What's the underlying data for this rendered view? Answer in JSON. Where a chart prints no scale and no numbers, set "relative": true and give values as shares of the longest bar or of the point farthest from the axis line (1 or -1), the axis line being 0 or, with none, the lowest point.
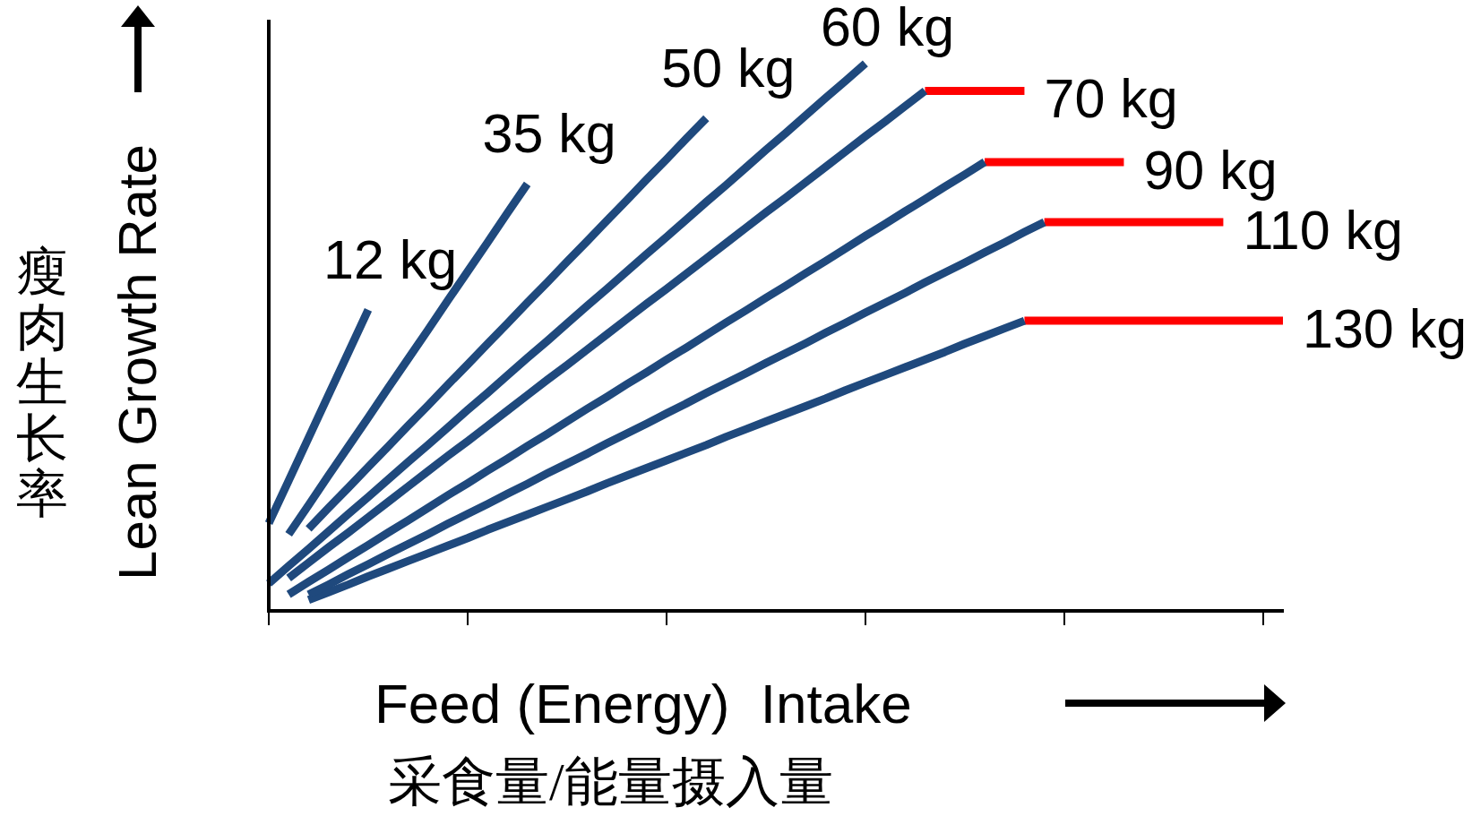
{
  "chart_data": {
    "type": "line",
    "relative": true,
    "xlabel": "Feed (Energy)  Intake\n采食量/能量摄入量",
    "ylabel": "Lean Growth Rate\n瘦肉生长率",
    "categories": [
      null,
      null,
      null,
      null,
      null,
      null,
      null,
      null,
      null,
      null,
      null,
      null,
      null,
      null,
      null,
      null,
      null,
      null,
      null,
      null,
      null,
      null,
      null,
      null,
      null,
      null,
      null,
      null,
      null,
      null,
      null,
      null,
      null,
      null,
      null,
      null,
      null,
      null,
      null,
      null,
      null,
      null,
      null,
      null,
      null,
      null,
      null,
      null,
      null,
      null,
      null,
      null
    ],
    "series": [
      {
        "name": "12 kg",
        "color": "#1f497d",
        "values": [
          0.16,
          0.238,
          0.316,
          0.394,
          0.472,
          0.55,
          null,
          null,
          null,
          null,
          null,
          null,
          null,
          null,
          null,
          null,
          null,
          null,
          null,
          null,
          null,
          null,
          null,
          null,
          null,
          null,
          null,
          null,
          null,
          null,
          null,
          null,
          null,
          null,
          null,
          null,
          null,
          null,
          null,
          null,
          null,
          null,
          null,
          null,
          null,
          null,
          null,
          null,
          null,
          null,
          null,
          null
        ]
      },
      {
        "name": "35 kg",
        "color": "#1f497d",
        "values": [
          null,
          0.14,
          0.193,
          0.247,
          0.3,
          0.353,
          0.407,
          0.46,
          0.513,
          0.567,
          0.62,
          0.673,
          0.727,
          0.78,
          null,
          null,
          null,
          null,
          null,
          null,
          null,
          null,
          null,
          null,
          null,
          null,
          null,
          null,
          null,
          null,
          null,
          null,
          null,
          null,
          null,
          null,
          null,
          null,
          null,
          null,
          null,
          null,
          null,
          null,
          null,
          null,
          null,
          null,
          null,
          null,
          null,
          null
        ]
      },
      {
        "name": "50 kg",
        "color": "#1f497d",
        "values": [
          null,
          null,
          0.15,
          0.188,
          0.225,
          0.263,
          0.3,
          0.338,
          0.375,
          0.413,
          0.45,
          0.488,
          0.525,
          0.563,
          0.6,
          0.638,
          0.675,
          0.713,
          0.75,
          0.788,
          0.825,
          0.863,
          0.9,
          null,
          null,
          null,
          null,
          null,
          null,
          null,
          null,
          null,
          null,
          null,
          null,
          null,
          null,
          null,
          null,
          null,
          null,
          null,
          null,
          null,
          null,
          null,
          null,
          null,
          null,
          null,
          null,
          null
        ]
      },
      {
        "name": "60 kg",
        "color": "#1f497d",
        "values": [
          0.05,
          0.082,
          0.113,
          0.145,
          0.177,
          0.208,
          0.24,
          0.272,
          0.303,
          0.335,
          0.367,
          0.398,
          0.43,
          0.462,
          0.493,
          0.525,
          0.557,
          0.588,
          0.62,
          0.652,
          0.683,
          0.715,
          0.747,
          0.778,
          0.81,
          0.842,
          0.873,
          0.905,
          0.937,
          0.968,
          1,
          null,
          null,
          null,
          null,
          null,
          null,
          null,
          null,
          null,
          null,
          null,
          null,
          null,
          null,
          null,
          null,
          null,
          null,
          null,
          null,
          null
        ]
      },
      {
        "color": "#1f497d",
        "values": [
          null,
          0.06,
          0.088,
          0.116,
          0.143,
          0.171,
          0.199,
          0.227,
          0.255,
          0.283,
          0.31,
          0.338,
          0.366,
          0.394,
          0.422,
          0.449,
          0.477,
          0.505,
          0.533,
          0.561,
          0.588,
          0.616,
          0.644,
          0.672,
          0.7,
          0.728,
          0.755,
          0.783,
          0.811,
          0.839,
          0.867,
          0.894,
          0.922,
          0.95,
          null,
          null,
          null,
          null,
          null,
          null,
          null,
          null,
          null,
          null,
          null,
          null,
          null,
          null,
          null,
          null,
          null,
          null
        ]
      },
      {
        "name": "70 kg",
        "color": "#ff0000",
        "values": [
          null,
          null,
          null,
          null,
          null,
          null,
          null,
          null,
          null,
          null,
          null,
          null,
          null,
          null,
          null,
          null,
          null,
          null,
          null,
          null,
          null,
          null,
          null,
          null,
          null,
          null,
          null,
          null,
          null,
          null,
          null,
          null,
          null,
          0.95,
          0.95,
          0.95,
          0.95,
          0.95,
          0.95,
          null,
          null,
          null,
          null,
          null,
          null,
          null,
          null,
          null,
          null,
          null,
          null,
          null
        ]
      },
      {
        "color": "#1f497d",
        "values": [
          null,
          0.03,
          0.053,
          0.075,
          0.098,
          0.12,
          0.143,
          0.165,
          0.188,
          0.211,
          0.233,
          0.256,
          0.278,
          0.301,
          0.323,
          0.346,
          0.369,
          0.391,
          0.414,
          0.436,
          0.459,
          0.481,
          0.504,
          0.527,
          0.549,
          0.572,
          0.594,
          0.617,
          0.639,
          0.662,
          0.685,
          0.707,
          0.73,
          0.752,
          0.775,
          0.797,
          0.82,
          null,
          null,
          null,
          null,
          null,
          null,
          null,
          null,
          null,
          null,
          null,
          null,
          null,
          null,
          null
        ]
      },
      {
        "name": "90 kg",
        "color": "#ff0000",
        "values": [
          null,
          null,
          null,
          null,
          null,
          null,
          null,
          null,
          null,
          null,
          null,
          null,
          null,
          null,
          null,
          null,
          null,
          null,
          null,
          null,
          null,
          null,
          null,
          null,
          null,
          null,
          null,
          null,
          null,
          null,
          null,
          null,
          null,
          null,
          null,
          null,
          0.82,
          0.82,
          0.82,
          0.82,
          0.82,
          0.82,
          0.82,
          0.82,
          null,
          null,
          null,
          null,
          null,
          null,
          null,
          null
        ]
      },
      {
        "color": "#1f497d",
        "values": [
          null,
          null,
          0.03,
          0.048,
          0.067,
          0.085,
          0.104,
          0.122,
          0.14,
          0.159,
          0.177,
          0.195,
          0.214,
          0.232,
          0.251,
          0.269,
          0.287,
          0.306,
          0.324,
          0.342,
          0.361,
          0.379,
          0.398,
          0.416,
          0.434,
          0.453,
          0.471,
          0.489,
          0.508,
          0.526,
          0.545,
          0.563,
          0.581,
          0.6,
          0.618,
          0.636,
          0.655,
          0.673,
          0.692,
          0.71,
          null,
          null,
          null,
          null,
          null,
          null,
          null,
          null,
          null,
          null,
          null,
          null
        ]
      },
      {
        "name": "110 kg",
        "color": "#ff0000",
        "values": [
          null,
          null,
          null,
          null,
          null,
          null,
          null,
          null,
          null,
          null,
          null,
          null,
          null,
          null,
          null,
          null,
          null,
          null,
          null,
          null,
          null,
          null,
          null,
          null,
          null,
          null,
          null,
          null,
          null,
          null,
          null,
          null,
          null,
          null,
          null,
          null,
          null,
          null,
          null,
          0.71,
          0.71,
          0.71,
          0.71,
          0.71,
          0.71,
          0.71,
          0.71,
          0.71,
          0.71,
          null,
          null,
          null
        ]
      },
      {
        "color": "#1f497d",
        "values": [
          null,
          null,
          0.02,
          0.034,
          0.048,
          0.063,
          0.077,
          0.091,
          0.105,
          0.119,
          0.133,
          0.148,
          0.162,
          0.176,
          0.19,
          0.204,
          0.218,
          0.233,
          0.247,
          0.261,
          0.275,
          0.289,
          0.303,
          0.318,
          0.332,
          0.346,
          0.36,
          0.374,
          0.388,
          0.403,
          0.417,
          0.431,
          0.445,
          0.459,
          0.473,
          0.488,
          0.502,
          0.516,
          0.53,
          null,
          null,
          null,
          null,
          null,
          null,
          null,
          null,
          null,
          null,
          null,
          null,
          null
        ]
      },
      {
        "name": "130 kg",
        "color": "#ff0000",
        "values": [
          null,
          null,
          null,
          null,
          null,
          null,
          null,
          null,
          null,
          null,
          null,
          null,
          null,
          null,
          null,
          null,
          null,
          null,
          null,
          null,
          null,
          null,
          null,
          null,
          null,
          null,
          null,
          null,
          null,
          null,
          null,
          null,
          null,
          null,
          null,
          null,
          null,
          null,
          0.53,
          0.53,
          0.53,
          0.53,
          0.53,
          0.53,
          0.53,
          0.53,
          0.53,
          0.53,
          0.53,
          0.53,
          0.53,
          0.53
        ]
      }
    ]
  }
}
